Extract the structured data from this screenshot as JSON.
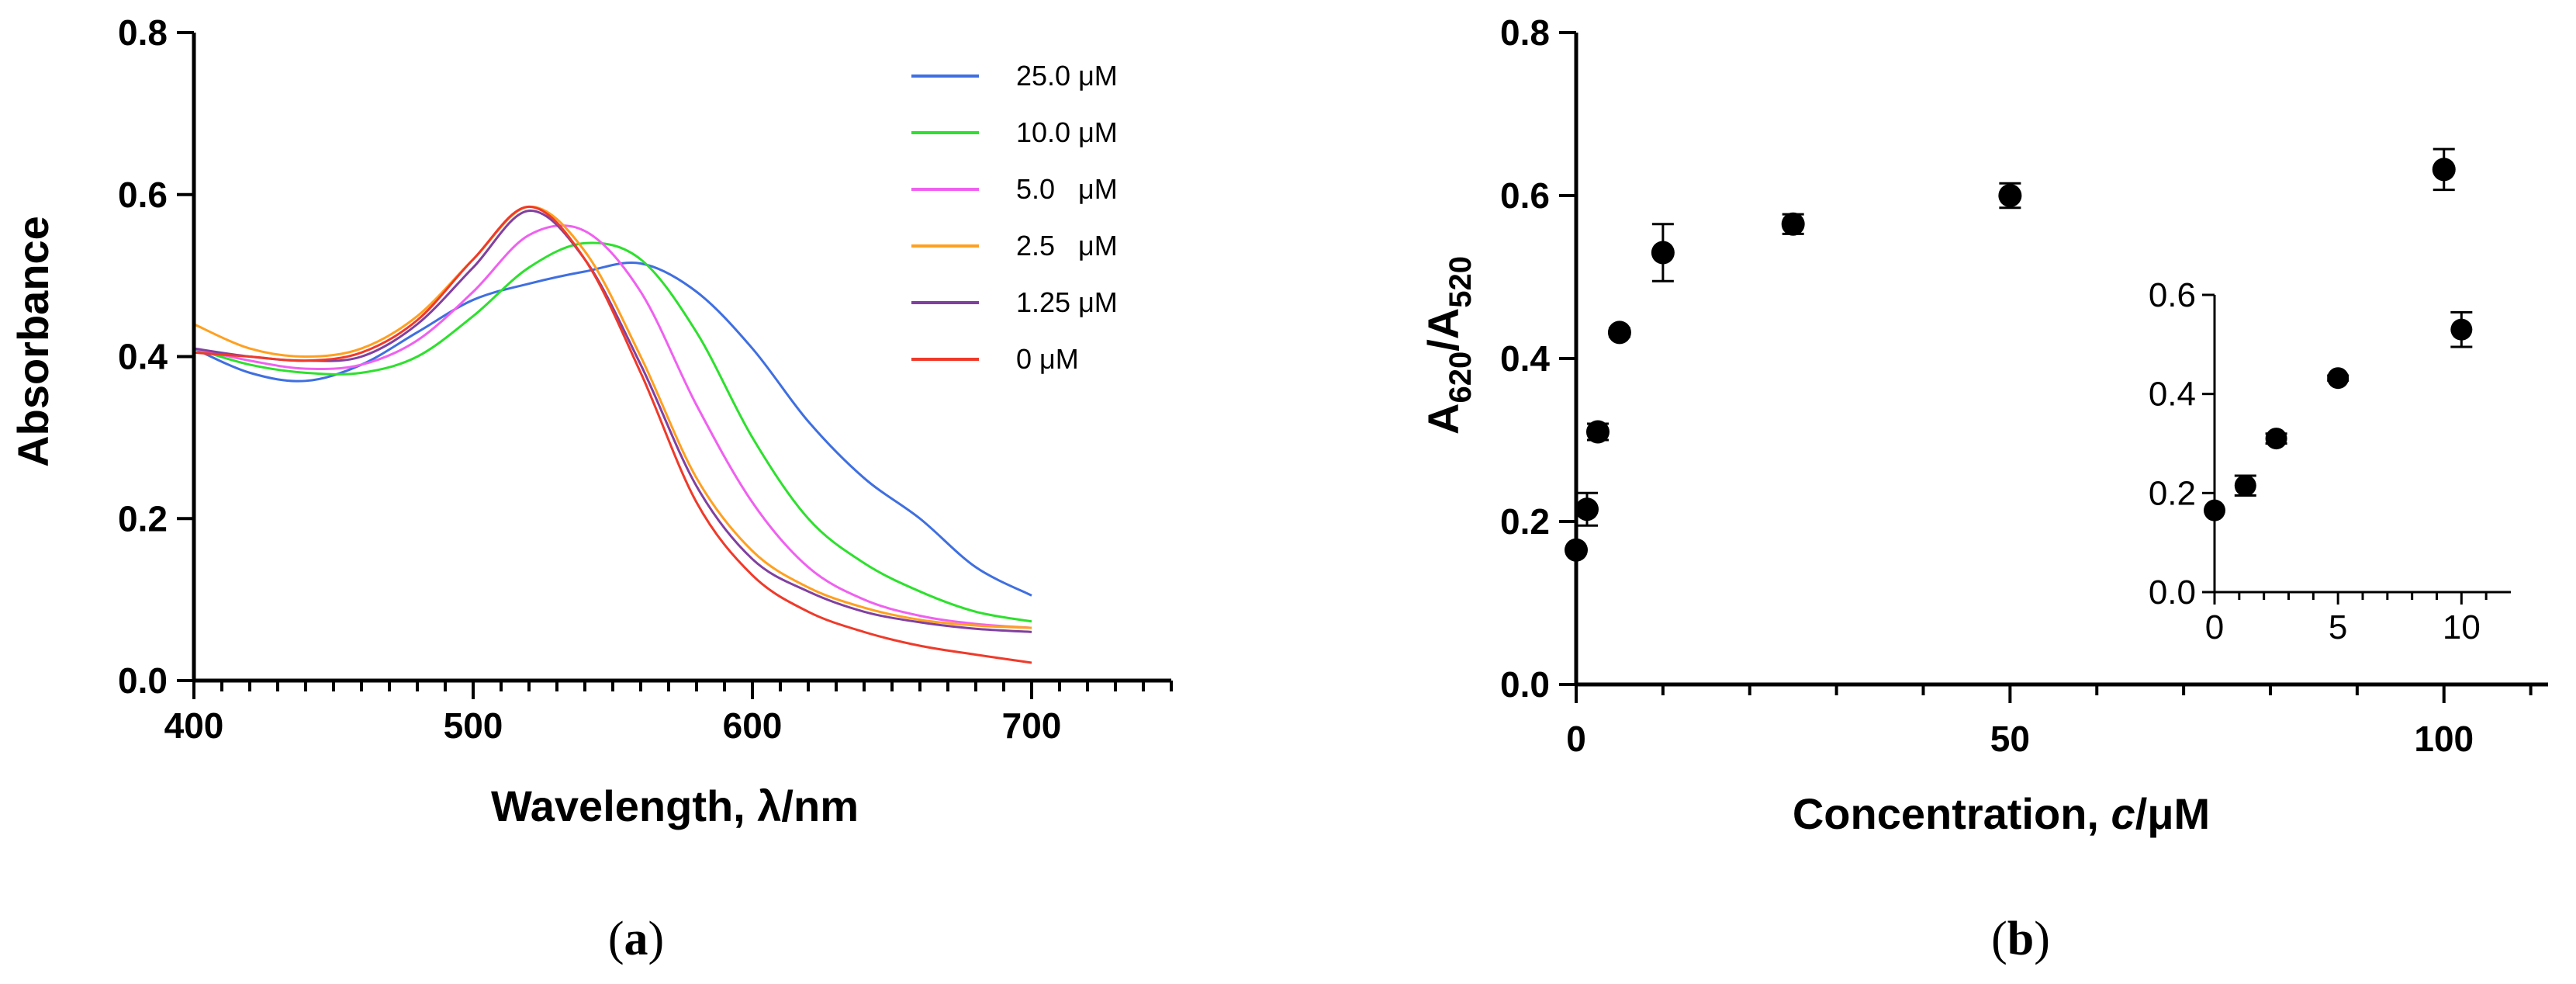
{
  "chart_data": [
    {
      "type": "line",
      "panel_label": "a",
      "xlabel": "Wavelength, λ/nm",
      "ylabel": "Absorbance",
      "xlim": [
        400,
        750
      ],
      "ylim": [
        0,
        0.8
      ],
      "xticks": [
        400,
        500,
        600,
        700
      ],
      "yticks": [
        0.0,
        0.2,
        0.4,
        0.6,
        0.8
      ],
      "legend_position": "top-right",
      "series": [
        {
          "name": "25.0 μM",
          "color": "#3f6fe0",
          "x": [
            400,
            420,
            440,
            460,
            480,
            500,
            520,
            540,
            560,
            580,
            600,
            620,
            640,
            660,
            680,
            700
          ],
          "y": [
            0.41,
            0.38,
            0.37,
            0.39,
            0.43,
            0.47,
            0.49,
            0.505,
            0.515,
            0.48,
            0.41,
            0.32,
            0.25,
            0.2,
            0.14,
            0.105
          ]
        },
        {
          "name": "10.0 μM",
          "color": "#2ee02e",
          "x": [
            400,
            420,
            440,
            460,
            480,
            500,
            520,
            540,
            560,
            580,
            600,
            620,
            640,
            660,
            680,
            700
          ],
          "y": [
            0.41,
            0.39,
            0.38,
            0.38,
            0.4,
            0.45,
            0.51,
            0.54,
            0.52,
            0.43,
            0.3,
            0.2,
            0.145,
            0.11,
            0.085,
            0.073
          ]
        },
        {
          "name": "5.0   μM",
          "color": "#f060f0",
          "x": [
            400,
            420,
            440,
            460,
            480,
            500,
            520,
            540,
            560,
            580,
            600,
            620,
            640,
            660,
            680,
            700
          ],
          "y": [
            0.41,
            0.395,
            0.385,
            0.39,
            0.42,
            0.48,
            0.55,
            0.555,
            0.48,
            0.34,
            0.22,
            0.14,
            0.1,
            0.08,
            0.07,
            0.065
          ]
        },
        {
          "name": "2.5   μM",
          "color": "#ffa020",
          "x": [
            400,
            420,
            440,
            460,
            480,
            500,
            520,
            540,
            560,
            580,
            600,
            620,
            640,
            660,
            680,
            700
          ],
          "y": [
            0.44,
            0.41,
            0.4,
            0.41,
            0.45,
            0.52,
            0.585,
            0.53,
            0.4,
            0.25,
            0.16,
            0.115,
            0.09,
            0.075,
            0.068,
            0.065
          ]
        },
        {
          "name": "1.25 μM",
          "color": "#8040a0",
          "x": [
            400,
            420,
            440,
            460,
            480,
            500,
            520,
            540,
            560,
            580,
            600,
            620,
            640,
            660,
            680,
            700
          ],
          "y": [
            0.41,
            0.4,
            0.395,
            0.4,
            0.44,
            0.51,
            0.58,
            0.52,
            0.39,
            0.24,
            0.15,
            0.11,
            0.085,
            0.072,
            0.064,
            0.06
          ]
        },
        {
          "name": "0 μM",
          "color": "#ef3a2a",
          "x": [
            400,
            420,
            440,
            460,
            480,
            500,
            520,
            540,
            560,
            580,
            600,
            620,
            640,
            660,
            680,
            700
          ],
          "y": [
            0.405,
            0.4,
            0.395,
            0.405,
            0.445,
            0.52,
            0.585,
            0.52,
            0.38,
            0.22,
            0.13,
            0.085,
            0.06,
            0.043,
            0.032,
            0.022
          ]
        }
      ]
    },
    {
      "type": "scatter",
      "panel_label": "b",
      "xlabel_main": "Concentration, ",
      "xlabel_italic": "c",
      "xlabel_unit": "/μM",
      "ylabel_parts": {
        "a": "A",
        "sub1": "620",
        "slash": "/A",
        "sub2": "520"
      },
      "xlim": [
        0,
        112
      ],
      "ylim": [
        0,
        0.8
      ],
      "xticks": [
        0,
        50,
        100
      ],
      "yticks": [
        0.0,
        0.2,
        0.4,
        0.6,
        0.8
      ],
      "points": [
        {
          "x": 0,
          "y": 0.165,
          "err": 0.0
        },
        {
          "x": 1.25,
          "y": 0.215,
          "err": 0.02
        },
        {
          "x": 2.5,
          "y": 0.31,
          "err": 0.01
        },
        {
          "x": 5,
          "y": 0.432,
          "err": 0.005
        },
        {
          "x": 10,
          "y": 0.53,
          "err": 0.035
        },
        {
          "x": 25,
          "y": 0.565,
          "err": 0.012
        },
        {
          "x": 50,
          "y": 0.6,
          "err": 0.015
        },
        {
          "x": 100,
          "y": 0.632,
          "err": 0.025
        }
      ],
      "inset": {
        "xlim": [
          0,
          12
        ],
        "ylim": [
          0,
          0.6
        ],
        "xticks": [
          0,
          5,
          10
        ],
        "yticks": [
          0.0,
          0.2,
          0.4,
          0.6
        ],
        "points": [
          {
            "x": 0,
            "y": 0.165,
            "err": 0.0
          },
          {
            "x": 1.25,
            "y": 0.215,
            "err": 0.02
          },
          {
            "x": 2.5,
            "y": 0.31,
            "err": 0.01
          },
          {
            "x": 5,
            "y": 0.432,
            "err": 0.005
          },
          {
            "x": 10,
            "y": 0.53,
            "err": 0.035
          }
        ]
      }
    }
  ],
  "captions": {
    "a": "a",
    "b": "b"
  }
}
